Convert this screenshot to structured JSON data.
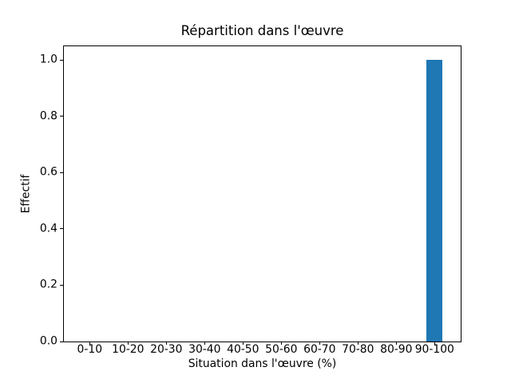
{
  "chart_data": {
    "type": "bar",
    "title": "Répartition dans l'œuvre",
    "xlabel": "Situation dans l'œuvre (%)",
    "ylabel": "Effectif",
    "categories": [
      "0-10",
      "10-20",
      "20-30",
      "30-40",
      "40-50",
      "50-60",
      "60-70",
      "70-80",
      "80-90",
      "90-100"
    ],
    "values": [
      0,
      0,
      0,
      0,
      0,
      0,
      0,
      0,
      0,
      1
    ],
    "ytick_labels": [
      "0.0",
      "0.2",
      "0.4",
      "0.6",
      "0.8",
      "1.0"
    ],
    "ylim": [
      0.0,
      1.048
    ],
    "grid": false,
    "legend": "none",
    "bar_color": "#1f77b4",
    "spine_color": "#000000",
    "background_color": "#ffffff"
  }
}
